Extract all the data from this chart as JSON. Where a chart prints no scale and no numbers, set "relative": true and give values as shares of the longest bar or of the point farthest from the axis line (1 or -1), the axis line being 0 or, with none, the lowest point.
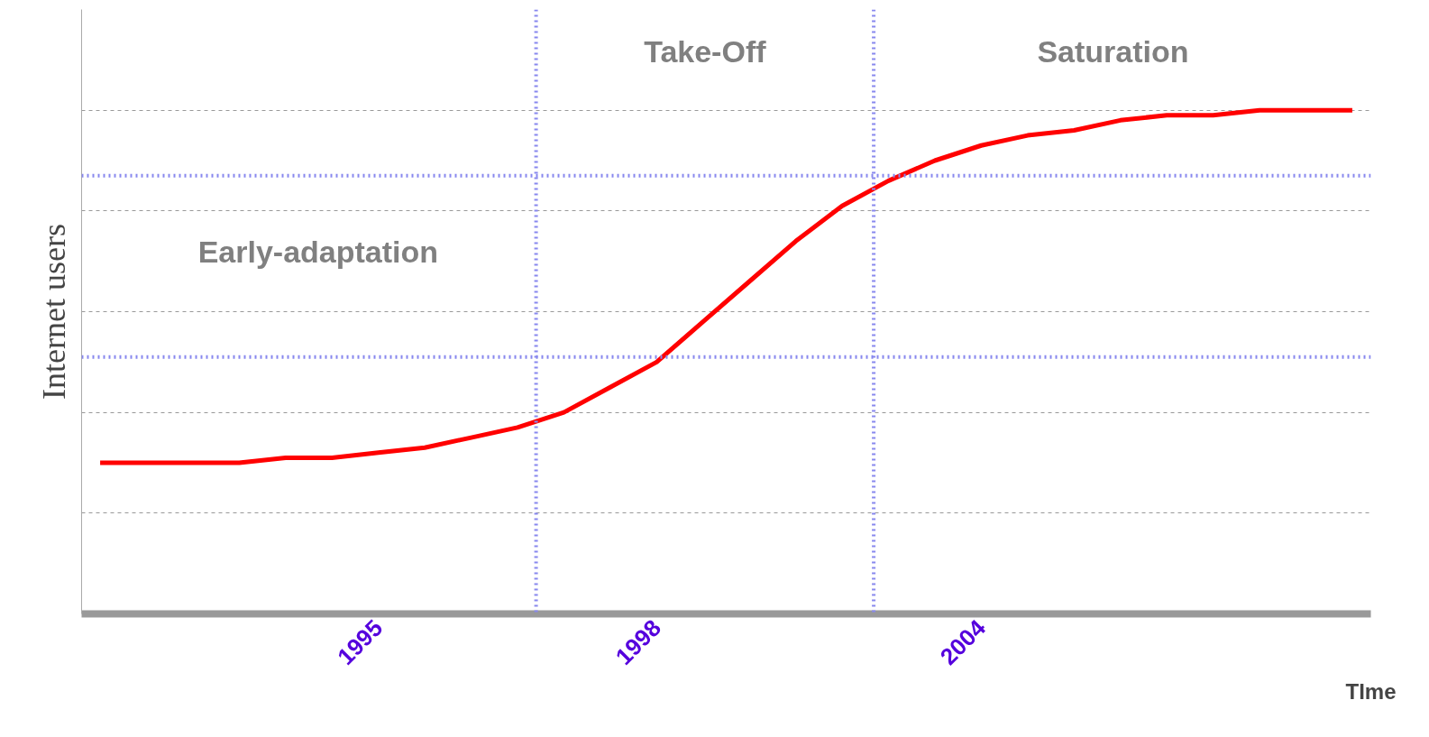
{
  "chart_data": {
    "type": "line",
    "relative": true,
    "xlabel": "TIme",
    "ylabel": "Internet users",
    "categories": [
      null,
      null,
      null,
      null,
      null,
      null,
      "1995",
      null,
      null,
      null,
      null,
      null,
      "1998",
      null,
      null,
      null,
      null,
      null,
      null,
      "2004",
      null,
      null,
      null,
      null,
      null,
      null,
      null,
      null
    ],
    "series": [
      {
        "color": "#ff0000",
        "values": [
          0.3,
          0.3,
          0.3,
          0.3,
          0.31,
          0.31,
          0.32,
          0.33,
          0.35,
          0.37,
          0.4,
          0.45,
          0.5,
          0.58,
          0.66,
          0.74,
          0.81,
          0.86,
          0.9,
          0.93,
          0.95,
          0.96,
          0.98,
          0.99,
          0.99,
          1.0,
          1.0,
          1.0
        ]
      }
    ],
    "ref_lines": [
      {
        "axis": "y",
        "value": 0.87,
        "color": "#8888ee",
        "line_style": "dotted"
      },
      {
        "axis": "y",
        "value": 0.51,
        "color": "#8888ee",
        "line_style": "dotted"
      }
    ],
    "annotations": [
      "Early-adaptation",
      "Take-Off",
      "Saturation"
    ],
    "grid": "y",
    "marker": "none",
    "line_style": "solid"
  }
}
